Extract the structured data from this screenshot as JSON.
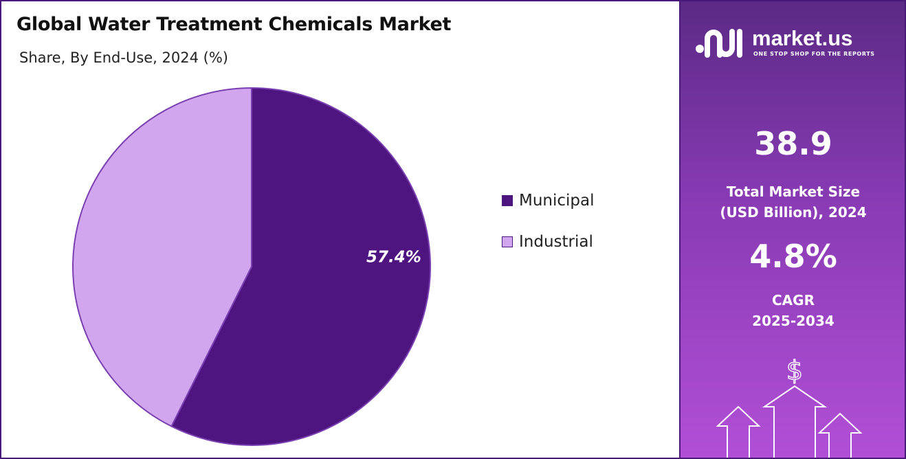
{
  "header": {
    "title": "Global Water Treatment Chemicals Market",
    "subtitle": "Share, By End-Use, 2024 (%)"
  },
  "chart_data": {
    "type": "pie",
    "categories": [
      "Municipal",
      "Industrial"
    ],
    "values": [
      57.4,
      42.6
    ],
    "colors": [
      "#4e1580",
      "#d2a6ee"
    ],
    "data_labels": [
      "57.4%",
      ""
    ],
    "legend_placement": "right"
  },
  "legend": [
    {
      "label": "Municipal",
      "color": "#4e1580"
    },
    {
      "label": "Industrial",
      "color": "#d2a6ee"
    }
  ],
  "brand": {
    "name": "market.us",
    "tagline": "ONE STOP SHOP FOR THE REPORTS",
    "logo_icon": "market-us-logo-icon"
  },
  "stats": {
    "market_size_value": "38.9",
    "market_size_label_line1": "Total Market Size",
    "market_size_label_line2": "(USD Billion), 2024",
    "cagr_value": "4.8%",
    "cagr_label_line1": "CAGR",
    "cagr_label_line2": "2025-2034"
  },
  "decoration": {
    "currency_symbol": "$",
    "icon": "growth-arrows-icon"
  }
}
